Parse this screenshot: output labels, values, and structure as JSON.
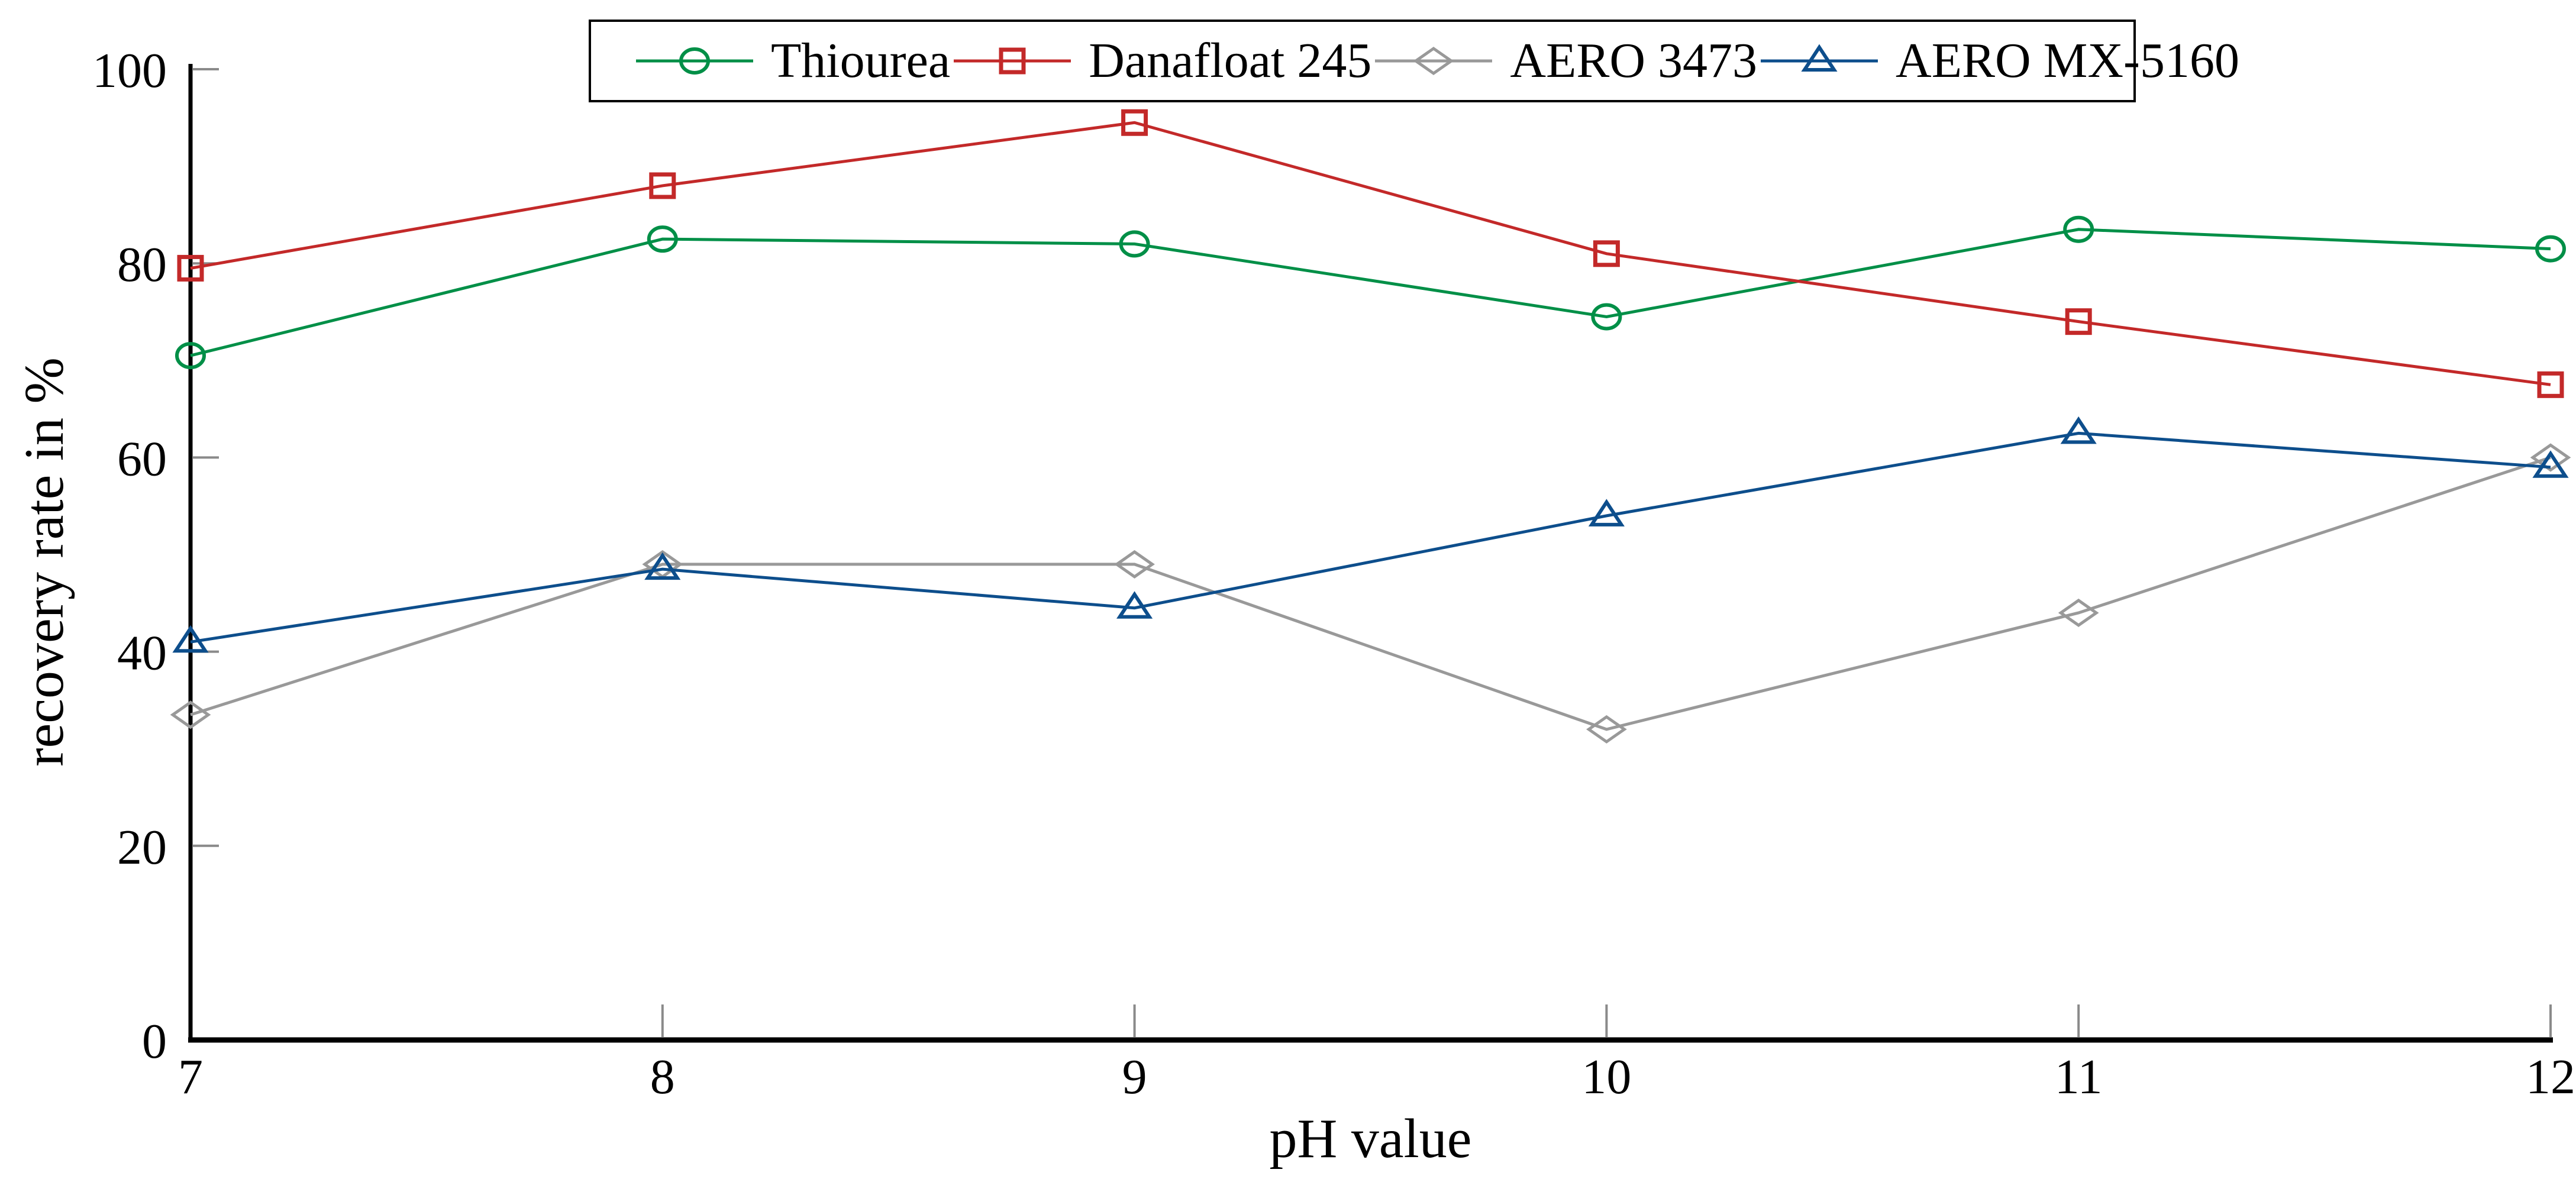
{
  "figure": {
    "background": "#ffffff",
    "axis_color": "#000000",
    "tick_color": "#8a8a8a"
  },
  "chart_data": {
    "type": "line",
    "title": "",
    "xlabel": "pH value",
    "ylabel": "recovery rate in %",
    "x": [
      7,
      8,
      9,
      10,
      11,
      12
    ],
    "x_ticks": [
      7,
      8,
      9,
      10,
      11,
      12
    ],
    "y_ticks": [
      0,
      20,
      40,
      60,
      80,
      100
    ],
    "xlim": [
      7,
      12
    ],
    "ylim": [
      0,
      100
    ],
    "grid": false,
    "legend_position": "top-center",
    "series": [
      {
        "name": "Thiourea",
        "marker": "circle",
        "color": "#008f47",
        "values": [
          70.5,
          82.5,
          82,
          74.5,
          83.5,
          81.5
        ]
      },
      {
        "name": "Danafloat 245",
        "marker": "square",
        "color": "#c32929",
        "values": [
          79.5,
          88,
          94.5,
          81,
          74,
          67.5
        ]
      },
      {
        "name": "AERO 3473",
        "marker": "diamond",
        "color": "#999999",
        "values": [
          33.5,
          49,
          49,
          32,
          44,
          60
        ]
      },
      {
        "name": "AERO MX-5160",
        "marker": "triangle-up",
        "color": "#0d4e8c",
        "values": [
          41,
          48.5,
          44.5,
          54,
          62.5,
          59
        ]
      }
    ]
  }
}
